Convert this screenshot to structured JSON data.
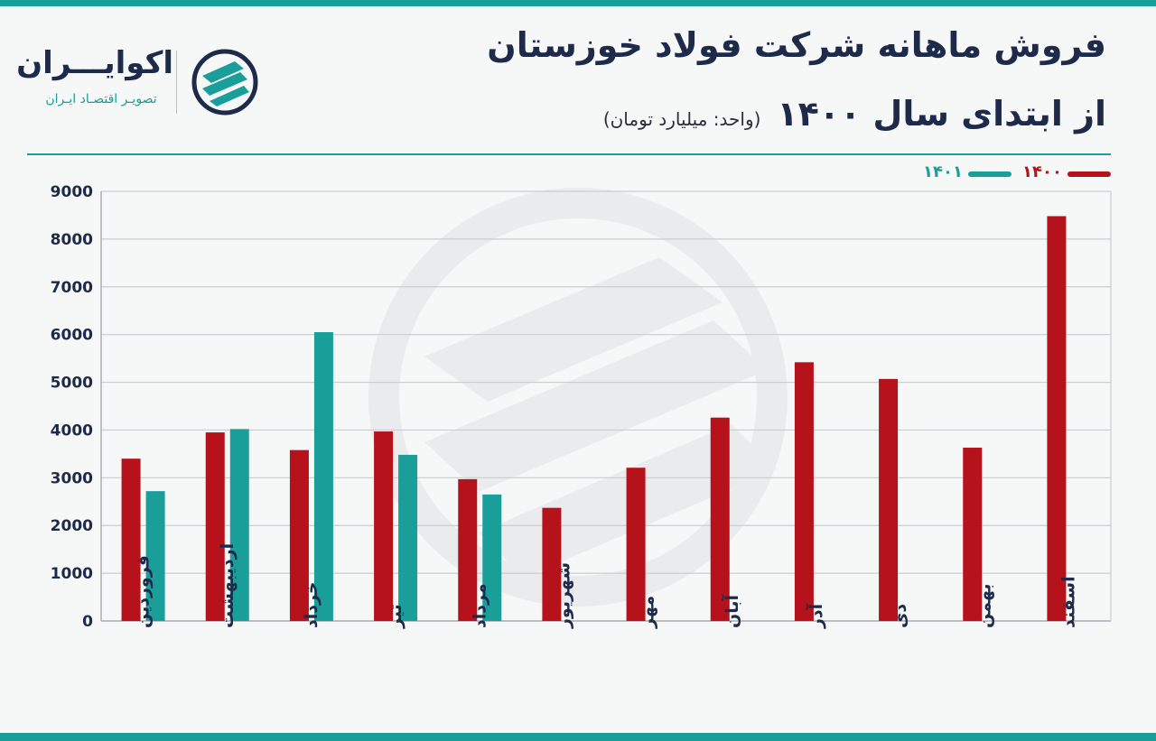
{
  "header": {
    "title": "فروش ماهانه شرکت فولاد خوزستان",
    "subtitle": "از ابتدای سال ۱۴۰۰",
    "unit": "(واحد: میلیارد تومان)"
  },
  "logo": {
    "name": "اکوایـــران",
    "tagline": "تصویـر اقتصـاد ایـران",
    "icon": "ecoiran-logo-icon"
  },
  "colors": {
    "accent": "#1a9e9a",
    "series_1400": "#b5121b",
    "series_1401": "#1a9e9a",
    "title": "#1e2a4a",
    "grid": "#c9cdd1"
  },
  "chart_data": {
    "type": "bar",
    "title": "فروش ماهانه شرکت فولاد خوزستان",
    "xlabel": "",
    "ylabel": "",
    "ylim": [
      0,
      9000
    ],
    "yticks": [
      "0",
      "1000",
      "2000",
      "3000",
      "4000",
      "5000",
      "6000",
      "7000",
      "8000",
      "9000"
    ],
    "grid": true,
    "legend_position": "top-right",
    "categories": [
      "فروردین",
      "اردیبهشت",
      "خرداد",
      "تیر",
      "مرداد",
      "شهریور",
      "مهر",
      "آبان",
      "آذر",
      "دی",
      "بهمن",
      "اسفند"
    ],
    "series": [
      {
        "name": "۱۴۰۰",
        "color": "#b5121b",
        "values": [
          3400,
          3950,
          3580,
          3970,
          2970,
          2370,
          3210,
          4260,
          5420,
          5070,
          3630,
          8480
        ]
      },
      {
        "name": "۱۴۰۱",
        "color": "#1a9e9a",
        "values": [
          2720,
          4020,
          6050,
          3480,
          2650,
          null,
          null,
          null,
          null,
          null,
          null,
          null
        ]
      }
    ]
  }
}
